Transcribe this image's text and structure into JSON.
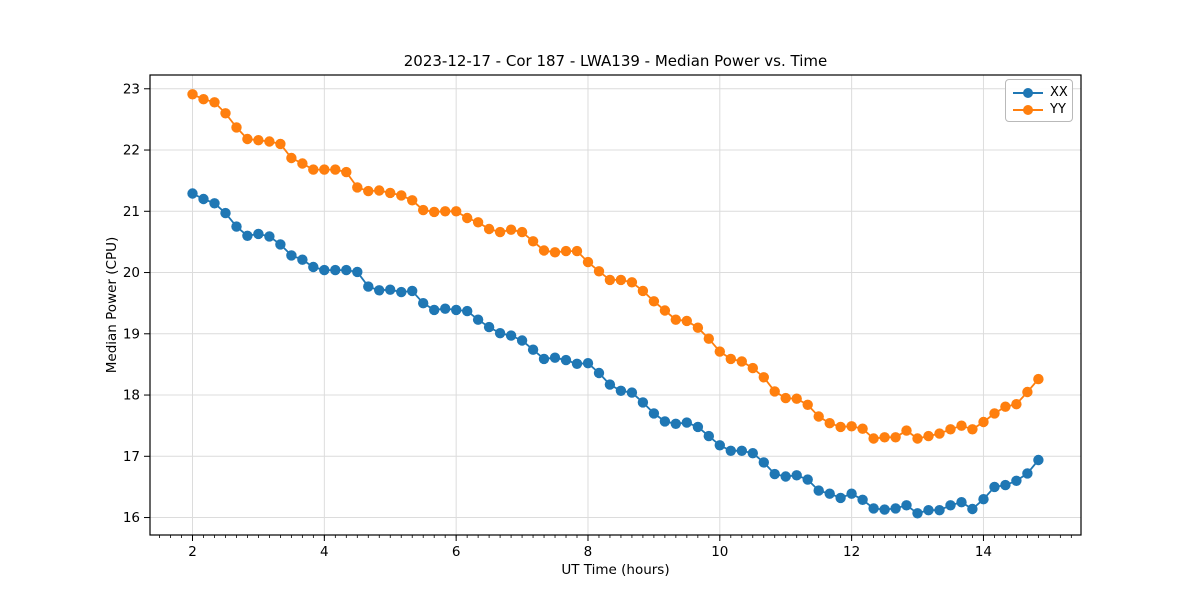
{
  "figure": {
    "title": "2023-12-17 - Cor 187 - LWA139 - Median Power vs. Time"
  },
  "chart_data": {
    "type": "line",
    "title": "2023-12-17 - Cor 187 - LWA139 - Median Power vs. Time",
    "xlabel": "UT Time (hours)",
    "ylabel": "Median Power (CPU)",
    "xlim": [
      1.355,
      15.48
    ],
    "ylim": [
      15.715,
      23.225
    ],
    "x_major_ticks": [
      2,
      4,
      6,
      8,
      10,
      12,
      14
    ],
    "x_minor_tick_step": 0.166667,
    "y_major_ticks": [
      16,
      17,
      18,
      19,
      20,
      21,
      22,
      23
    ],
    "grid": "major",
    "grid_color": "#dcdcdc",
    "spine_color": "#000000",
    "legend_position": "upper right",
    "x_start_hours": 2.0,
    "x_step_hours": 0.166667,
    "x": [
      2.0,
      2.167,
      2.333,
      2.5,
      2.667,
      2.833,
      3.0,
      3.167,
      3.333,
      3.5,
      3.667,
      3.833,
      4.0,
      4.167,
      4.333,
      4.5,
      4.667,
      4.833,
      5.0,
      5.167,
      5.333,
      5.5,
      5.667,
      5.833,
      6.0,
      6.167,
      6.333,
      6.5,
      6.667,
      6.833,
      7.0,
      7.167,
      7.333,
      7.5,
      7.667,
      7.833,
      8.0,
      8.167,
      8.333,
      8.5,
      8.667,
      8.833,
      9.0,
      9.167,
      9.333,
      9.5,
      9.667,
      9.833,
      10.0,
      10.167,
      10.333,
      10.5,
      10.667,
      10.833,
      11.0,
      11.167,
      11.333,
      11.5,
      11.667,
      11.833,
      12.0,
      12.167,
      12.333,
      12.5,
      12.667,
      12.833,
      13.0,
      13.167,
      13.333,
      13.5,
      13.667,
      13.833,
      14.0,
      14.167,
      14.333,
      14.5,
      14.667,
      14.833
    ],
    "series": [
      {
        "name": "XX",
        "color": "#1f77b4",
        "values": [
          21.29,
          21.2,
          21.13,
          20.97,
          20.75,
          20.6,
          20.63,
          20.59,
          20.46,
          20.28,
          20.21,
          20.09,
          20.04,
          20.04,
          20.04,
          20.01,
          19.77,
          19.71,
          19.72,
          19.68,
          19.7,
          19.5,
          19.39,
          19.41,
          19.39,
          19.37,
          19.23,
          19.11,
          19.01,
          18.97,
          18.89,
          18.74,
          18.59,
          18.61,
          18.57,
          18.51,
          18.52,
          18.36,
          18.17,
          18.07,
          18.04,
          17.88,
          17.7,
          17.57,
          17.53,
          17.55,
          17.48,
          17.33,
          17.18,
          17.09,
          17.09,
          17.05,
          16.9,
          16.71,
          16.67,
          16.69,
          16.62,
          16.44,
          16.39,
          16.32,
          16.39,
          16.29,
          16.15,
          16.13,
          16.15,
          16.2,
          16.07,
          16.12,
          16.12,
          16.2,
          16.25,
          16.14,
          16.3,
          16.5,
          16.53,
          16.6,
          16.72,
          16.94
        ]
      },
      {
        "name": "YY",
        "color": "#ff7f0e",
        "values": [
          22.91,
          22.83,
          22.78,
          22.6,
          22.37,
          22.18,
          22.16,
          22.14,
          22.1,
          21.87,
          21.78,
          21.68,
          21.68,
          21.68,
          21.64,
          21.39,
          21.33,
          21.34,
          21.3,
          21.26,
          21.18,
          21.02,
          20.99,
          21.0,
          21.0,
          20.89,
          20.82,
          20.71,
          20.66,
          20.7,
          20.66,
          20.51,
          20.36,
          20.33,
          20.35,
          20.35,
          20.17,
          20.02,
          19.88,
          19.88,
          19.84,
          19.7,
          19.53,
          19.38,
          19.23,
          19.21,
          19.1,
          18.92,
          18.71,
          18.59,
          18.55,
          18.44,
          18.29,
          18.06,
          17.95,
          17.94,
          17.84,
          17.65,
          17.54,
          17.48,
          17.49,
          17.45,
          17.29,
          17.31,
          17.31,
          17.42,
          17.29,
          17.33,
          17.37,
          17.44,
          17.5,
          17.44,
          17.56,
          17.7,
          17.81,
          17.85,
          18.05,
          18.26
        ]
      }
    ]
  }
}
